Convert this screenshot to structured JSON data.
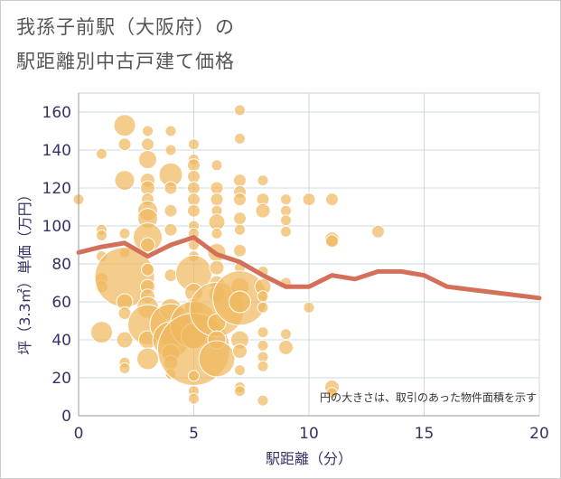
{
  "title": {
    "line1": "我孫子前駅（大阪府）の",
    "line2": "駅距離別中古戸建て価格"
  },
  "chart_data": {
    "type": "scatter",
    "title": "我孫子前駅（大阪府）の駅距離別中古戸建て価格",
    "xlabel": "駅距離（分）",
    "ylabel": "坪（3.3㎡）単価（万円）",
    "xlim": [
      0,
      20
    ],
    "ylim": [
      0,
      170
    ],
    "xticks": [
      0,
      5,
      10,
      15,
      20
    ],
    "yticks": [
      0,
      20,
      40,
      60,
      80,
      100,
      120,
      140,
      160
    ],
    "grid": true,
    "annotation": "円の大きさは、取引のあった物件面積を示す",
    "colors": {
      "bubble": "#f0b860",
      "line": "#d4705a",
      "axis": "#333366",
      "grid": "#cfd8e0"
    },
    "scatter_points": [
      {
        "x": 0,
        "y": 114,
        "s": 6
      },
      {
        "x": 1,
        "y": 138,
        "s": 6
      },
      {
        "x": 1,
        "y": 98,
        "s": 6
      },
      {
        "x": 1,
        "y": 95,
        "s": 6
      },
      {
        "x": 1,
        "y": 84,
        "s": 6
      },
      {
        "x": 1,
        "y": 72,
        "s": 7
      },
      {
        "x": 1,
        "y": 68,
        "s": 7
      },
      {
        "x": 1,
        "y": 44,
        "s": 12
      },
      {
        "x": 2,
        "y": 153,
        "s": 12
      },
      {
        "x": 2,
        "y": 143,
        "s": 7
      },
      {
        "x": 2,
        "y": 124,
        "s": 11
      },
      {
        "x": 2,
        "y": 96,
        "s": 6
      },
      {
        "x": 2,
        "y": 86,
        "s": 6
      },
      {
        "x": 2,
        "y": 73,
        "s": 33
      },
      {
        "x": 2,
        "y": 60,
        "s": 9
      },
      {
        "x": 2,
        "y": 54,
        "s": 7
      },
      {
        "x": 2,
        "y": 40,
        "s": 9
      },
      {
        "x": 2,
        "y": 28,
        "s": 6
      },
      {
        "x": 2,
        "y": 25,
        "s": 6
      },
      {
        "x": 3,
        "y": 150,
        "s": 6
      },
      {
        "x": 3,
        "y": 143,
        "s": 7
      },
      {
        "x": 3,
        "y": 135,
        "s": 10
      },
      {
        "x": 3,
        "y": 124,
        "s": 8
      },
      {
        "x": 3,
        "y": 120,
        "s": 8
      },
      {
        "x": 3,
        "y": 114,
        "s": 7
      },
      {
        "x": 3,
        "y": 108,
        "s": 11
      },
      {
        "x": 3,
        "y": 104,
        "s": 11
      },
      {
        "x": 3,
        "y": 94,
        "s": 16
      },
      {
        "x": 3,
        "y": 90,
        "s": 8
      },
      {
        "x": 3,
        "y": 77,
        "s": 7
      },
      {
        "x": 3,
        "y": 68,
        "s": 8
      },
      {
        "x": 3,
        "y": 63,
        "s": 8
      },
      {
        "x": 3,
        "y": 57,
        "s": 12
      },
      {
        "x": 3,
        "y": 48,
        "s": 22
      },
      {
        "x": 3,
        "y": 40,
        "s": 10
      },
      {
        "x": 3,
        "y": 30,
        "s": 12
      },
      {
        "x": 4,
        "y": 150,
        "s": 6
      },
      {
        "x": 4,
        "y": 140,
        "s": 6
      },
      {
        "x": 4,
        "y": 127,
        "s": 13
      },
      {
        "x": 4,
        "y": 120,
        "s": 7
      },
      {
        "x": 4,
        "y": 108,
        "s": 7
      },
      {
        "x": 4,
        "y": 98,
        "s": 7
      },
      {
        "x": 4,
        "y": 74,
        "s": 7
      },
      {
        "x": 4,
        "y": 56,
        "s": 12
      },
      {
        "x": 4,
        "y": 48,
        "s": 23
      },
      {
        "x": 4,
        "y": 40,
        "s": 20
      },
      {
        "x": 4,
        "y": 33,
        "s": 10
      },
      {
        "x": 4,
        "y": 28,
        "s": 8
      },
      {
        "x": 4,
        "y": 22,
        "s": 6
      },
      {
        "x": 5,
        "y": 143,
        "s": 6
      },
      {
        "x": 5,
        "y": 135,
        "s": 6
      },
      {
        "x": 5,
        "y": 132,
        "s": 7
      },
      {
        "x": 5,
        "y": 126,
        "s": 7
      },
      {
        "x": 5,
        "y": 120,
        "s": 7
      },
      {
        "x": 5,
        "y": 114,
        "s": 7
      },
      {
        "x": 5,
        "y": 108,
        "s": 7
      },
      {
        "x": 5,
        "y": 100,
        "s": 6
      },
      {
        "x": 5,
        "y": 96,
        "s": 6
      },
      {
        "x": 5,
        "y": 90,
        "s": 6
      },
      {
        "x": 5,
        "y": 84,
        "s": 6
      },
      {
        "x": 5,
        "y": 75,
        "s": 20
      },
      {
        "x": 5,
        "y": 65,
        "s": 10
      },
      {
        "x": 5,
        "y": 57,
        "s": 10
      },
      {
        "x": 5,
        "y": 48,
        "s": 26
      },
      {
        "x": 5,
        "y": 42,
        "s": 14
      },
      {
        "x": 5,
        "y": 35,
        "s": 40
      },
      {
        "x": 5,
        "y": 21,
        "s": 6
      },
      {
        "x": 5,
        "y": 13,
        "s": 6
      },
      {
        "x": 5,
        "y": 9,
        "s": 6
      },
      {
        "x": 6,
        "y": 132,
        "s": 6
      },
      {
        "x": 6,
        "y": 120,
        "s": 7
      },
      {
        "x": 6,
        "y": 114,
        "s": 7
      },
      {
        "x": 6,
        "y": 108,
        "s": 6
      },
      {
        "x": 6,
        "y": 102,
        "s": 9
      },
      {
        "x": 6,
        "y": 96,
        "s": 6
      },
      {
        "x": 6,
        "y": 86,
        "s": 10
      },
      {
        "x": 6,
        "y": 78,
        "s": 8
      },
      {
        "x": 6,
        "y": 70,
        "s": 8
      },
      {
        "x": 6,
        "y": 64,
        "s": 9
      },
      {
        "x": 6,
        "y": 56,
        "s": 30
      },
      {
        "x": 6,
        "y": 49,
        "s": 10
      },
      {
        "x": 6,
        "y": 40,
        "s": 10
      },
      {
        "x": 6,
        "y": 30,
        "s": 20
      },
      {
        "x": 7,
        "y": 161,
        "s": 6
      },
      {
        "x": 7,
        "y": 146,
        "s": 6
      },
      {
        "x": 7,
        "y": 124,
        "s": 7
      },
      {
        "x": 7,
        "y": 118,
        "s": 7
      },
      {
        "x": 7,
        "y": 114,
        "s": 7
      },
      {
        "x": 7,
        "y": 104,
        "s": 7
      },
      {
        "x": 7,
        "y": 98,
        "s": 6
      },
      {
        "x": 7,
        "y": 87,
        "s": 7
      },
      {
        "x": 7,
        "y": 78,
        "s": 6
      },
      {
        "x": 7,
        "y": 68,
        "s": 10
      },
      {
        "x": 7,
        "y": 62,
        "s": 30
      },
      {
        "x": 7,
        "y": 60,
        "s": 12
      },
      {
        "x": 7,
        "y": 40,
        "s": 10
      },
      {
        "x": 7,
        "y": 34,
        "s": 8
      },
      {
        "x": 7,
        "y": 24,
        "s": 6
      },
      {
        "x": 7,
        "y": 15,
        "s": 6
      },
      {
        "x": 7,
        "y": 13,
        "s": 6
      },
      {
        "x": 8,
        "y": 124,
        "s": 6
      },
      {
        "x": 8,
        "y": 114,
        "s": 7
      },
      {
        "x": 8,
        "y": 108,
        "s": 8
      },
      {
        "x": 8,
        "y": 76,
        "s": 6
      },
      {
        "x": 8,
        "y": 68,
        "s": 9
      },
      {
        "x": 8,
        "y": 63,
        "s": 6
      },
      {
        "x": 8,
        "y": 57,
        "s": 6
      },
      {
        "x": 8,
        "y": 44,
        "s": 6
      },
      {
        "x": 8,
        "y": 37,
        "s": 6
      },
      {
        "x": 8,
        "y": 31,
        "s": 6
      },
      {
        "x": 8,
        "y": 26,
        "s": 6
      },
      {
        "x": 8,
        "y": 8,
        "s": 6
      },
      {
        "x": 9,
        "y": 114,
        "s": 6
      },
      {
        "x": 9,
        "y": 108,
        "s": 6
      },
      {
        "x": 9,
        "y": 103,
        "s": 6
      },
      {
        "x": 9,
        "y": 97,
        "s": 6
      },
      {
        "x": 9,
        "y": 70,
        "s": 6
      },
      {
        "x": 9,
        "y": 43,
        "s": 6
      },
      {
        "x": 9,
        "y": 36,
        "s": 8
      },
      {
        "x": 10,
        "y": 114,
        "s": 7
      },
      {
        "x": 10,
        "y": 57,
        "s": 6
      },
      {
        "x": 11,
        "y": 114,
        "s": 7
      },
      {
        "x": 11,
        "y": 93,
        "s": 8
      },
      {
        "x": 11,
        "y": 92,
        "s": 7
      },
      {
        "x": 11,
        "y": 15,
        "s": 8
      },
      {
        "x": 11,
        "y": 12,
        "s": 6
      },
      {
        "x": 13,
        "y": 97,
        "s": 7
      }
    ],
    "series": [
      {
        "x": [
          0,
          1,
          2,
          3,
          4,
          5,
          6,
          7,
          8,
          9,
          10,
          11,
          12,
          13,
          14,
          15,
          16,
          17,
          18,
          19,
          20
        ],
        "values": [
          86,
          89,
          91,
          84,
          90,
          94,
          85,
          81,
          74,
          68,
          68,
          74,
          72,
          76,
          76,
          74,
          68,
          66.5,
          65,
          63.5,
          62
        ]
      }
    ]
  }
}
